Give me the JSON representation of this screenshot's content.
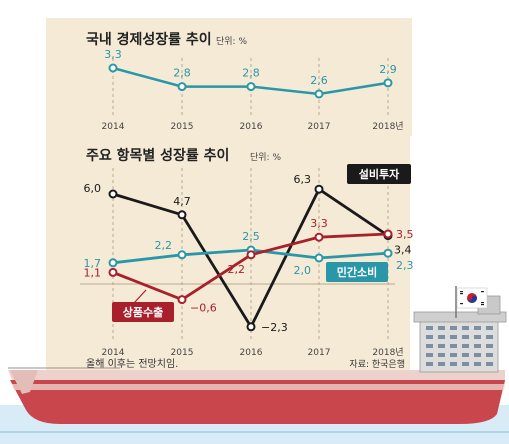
{
  "colors": {
    "panel_bg": "#f5ead6",
    "teal": "#2a97a8",
    "black": "#1a1a1a",
    "red": "#a8202c",
    "hull_red": "#c8464c",
    "hull_pink": "#ecd1cc",
    "sea": "#d8ecf7"
  },
  "chart_data": [
    {
      "type": "line",
      "title": "국내 경제성장률 추이",
      "unit": "단위: %",
      "x": [
        "2014",
        "2015",
        "2016",
        "2017",
        "2018년"
      ],
      "series": [
        {
          "values": [
            3.3,
            2.8,
            2.8,
            2.6,
            2.9
          ],
          "labels": [
            "3,3",
            "2,8",
            "2,8",
            "2,6",
            "2,9"
          ],
          "color": "#2a97a8"
        }
      ],
      "ylim": [
        2.4,
        3.5
      ],
      "grid": "vertical-dashed"
    },
    {
      "type": "line",
      "title": "주요 항목별 성장률 추이",
      "unit": "단위: %",
      "x": [
        "2014",
        "2015",
        "2016",
        "2017",
        "2018년"
      ],
      "series": [
        {
          "name": "설비투자",
          "values": [
            6.0,
            4.7,
            -2.3,
            6.3,
            3.4
          ],
          "labels": [
            "6,0",
            "4,7",
            "−2,3",
            "6,3",
            "3,4"
          ],
          "color": "#1a1a1a"
        },
        {
          "name": "민간소비",
          "values": [
            1.7,
            2.2,
            2.5,
            2.0,
            2.3
          ],
          "labels": [
            "1,7",
            "2,2",
            "2,5",
            "2,0",
            "2,3"
          ],
          "color": "#2a97a8"
        },
        {
          "name": "상품수출",
          "values": [
            1.1,
            -0.6,
            2.2,
            3.3,
            3.5
          ],
          "labels": [
            "1,1",
            "−0,6",
            "2,2",
            "3,3",
            "3,5"
          ],
          "color": "#a8202c"
        }
      ],
      "ylim": [
        -3,
        7
      ],
      "grid": "vertical-dashed",
      "notes": [
        "올해 이후는 전망치임.",
        "자료: 한국은행"
      ]
    }
  ]
}
